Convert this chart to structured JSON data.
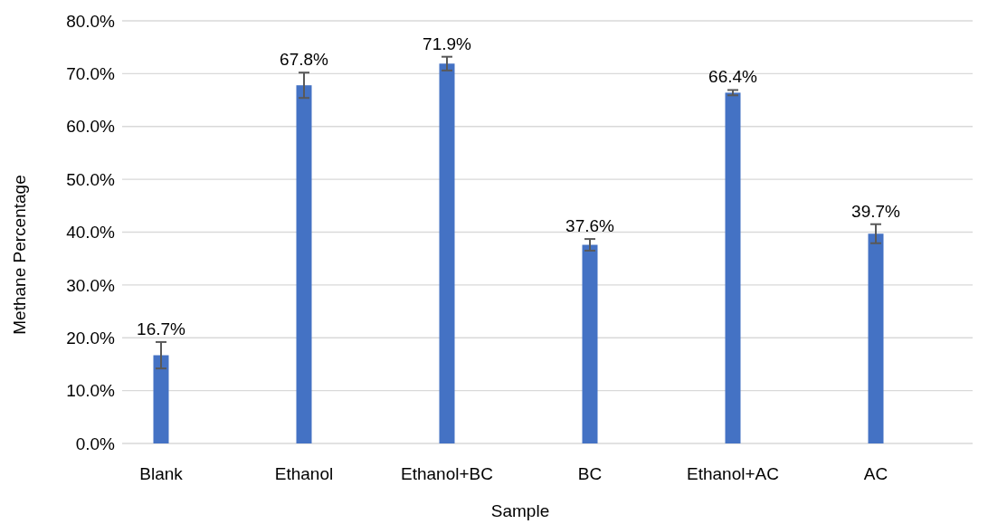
{
  "chart_data": {
    "type": "bar",
    "xlabel": "Sample",
    "ylabel": "Methane Percentage",
    "categories": [
      "Blank",
      "Ethanol",
      "Ethanol+BC",
      "BC",
      "Ethanol+AC",
      "AC"
    ],
    "values": [
      16.7,
      67.8,
      71.9,
      37.6,
      66.4,
      39.7
    ],
    "value_labels": [
      "16.7%",
      "67.8%",
      "71.9%",
      "37.6%",
      "66.4%",
      "39.7%"
    ],
    "errors": [
      2.5,
      2.4,
      1.3,
      1.1,
      0.5,
      1.8
    ],
    "color": "#4472c4",
    "ylim": [
      0,
      80
    ],
    "yticks": [
      {
        "value": 0,
        "label": "0.0%"
      },
      {
        "value": 10,
        "label": "10.0%"
      },
      {
        "value": 20,
        "label": "20.0%"
      },
      {
        "value": 30,
        "label": "30.0%"
      },
      {
        "value": 40,
        "label": "40.0%"
      },
      {
        "value": 50,
        "label": "50.0%"
      },
      {
        "value": 60,
        "label": "60.0%"
      },
      {
        "value": 70,
        "label": "70.0%"
      },
      {
        "value": 80,
        "label": "80.0%"
      }
    ],
    "grid": "y"
  }
}
